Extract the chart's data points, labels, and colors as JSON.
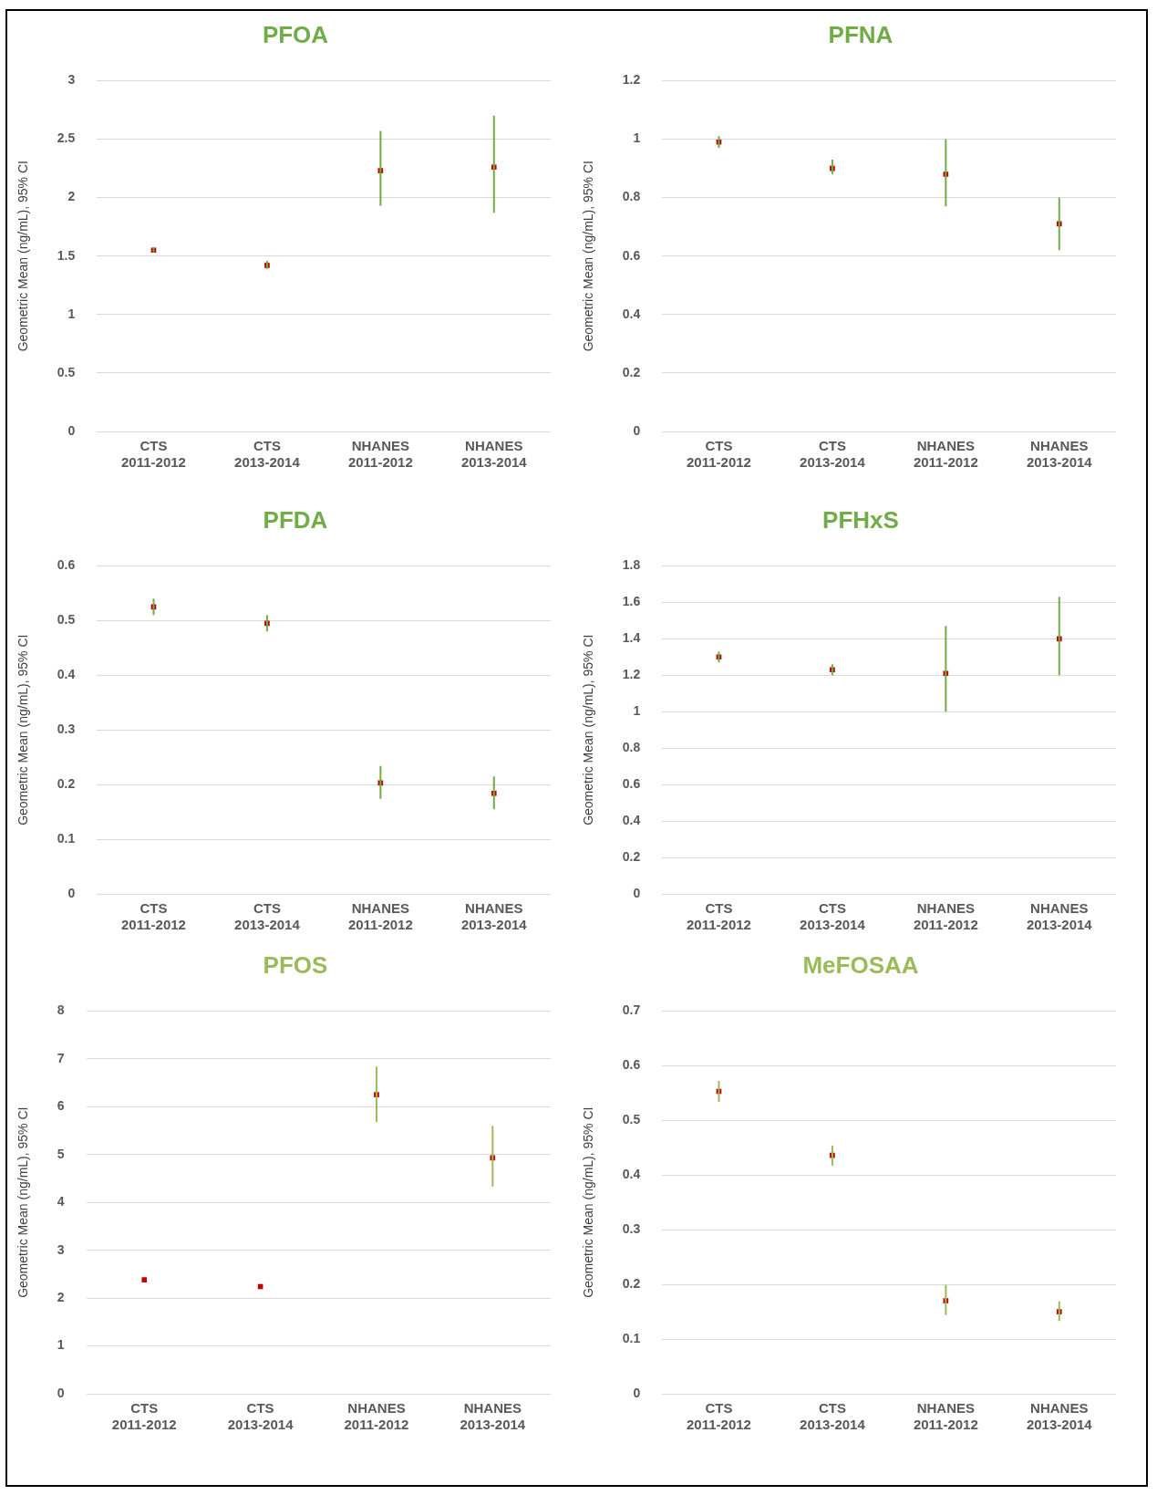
{
  "chart_data": [
    {
      "type": "scatter",
      "title": "PFOA",
      "ylabel": "Geometric Mean (ng/mL), 95% CI",
      "categories": [
        "CTS 2011-2012",
        "CTS 2013-2014",
        "NHANES 2011-2012",
        "NHANES 2013-2014"
      ],
      "series": [
        {
          "color": "#c00000",
          "values": [
            1.55,
            1.42,
            2.23,
            2.26
          ],
          "errors": [
            [
              1.53,
              1.57
            ],
            [
              1.39,
              1.46
            ],
            [
              1.93,
              2.57
            ],
            [
              1.87,
              2.7
            ]
          ]
        }
      ],
      "ylim": [
        0,
        3
      ],
      "yticks": [
        0,
        0.5,
        1,
        1.5,
        2,
        2.5,
        3
      ],
      "grid": "y",
      "legend": false,
      "marker": "square"
    },
    {
      "type": "scatter",
      "title": "PFNA",
      "ylabel": "Geometric Mean (ng/mL), 95% CI",
      "categories": [
        "CTS 2011-2012",
        "CTS 2013-2014",
        "NHANES 2011-2012",
        "NHANES 2013-2014"
      ],
      "series": [
        {
          "color": "#c00000",
          "values": [
            0.99,
            0.9,
            0.88,
            0.71
          ],
          "errors": [
            [
              0.97,
              1.01
            ],
            [
              0.88,
              0.93
            ],
            [
              0.77,
              1.0
            ],
            [
              0.62,
              0.8
            ]
          ]
        }
      ],
      "ylim": [
        0,
        1.2
      ],
      "yticks": [
        0,
        0.2,
        0.4,
        0.6,
        0.8,
        1,
        1.2
      ],
      "grid": "y",
      "legend": false,
      "marker": "square"
    },
    {
      "type": "scatter",
      "title": "PFDA",
      "ylabel": "Geometric Mean (ng/mL), 95% CI",
      "categories": [
        "CTS 2011-2012",
        "CTS 2013-2014",
        "NHANES 2011-2012",
        "NHANES 2013-2014"
      ],
      "series": [
        {
          "color": "#c00000",
          "values": [
            0.525,
            0.495,
            0.203,
            0.184
          ],
          "errors": [
            [
              0.51,
              0.54
            ],
            [
              0.48,
              0.51
            ],
            [
              0.174,
              0.234
            ],
            [
              0.155,
              0.215
            ]
          ]
        }
      ],
      "ylim": [
        0,
        0.6
      ],
      "yticks": [
        0,
        0.1,
        0.2,
        0.3,
        0.4,
        0.5,
        0.6
      ],
      "grid": "y",
      "legend": false,
      "marker": "square"
    },
    {
      "type": "scatter",
      "title": "PFHxS",
      "ylabel": "Geometric Mean (ng/mL), 95% CI",
      "categories": [
        "CTS 2011-2012",
        "CTS 2013-2014",
        "NHANES 2011-2012",
        "NHANES 2013-2014"
      ],
      "series": [
        {
          "color": "#c00000",
          "values": [
            1.3,
            1.23,
            1.21,
            1.4
          ],
          "errors": [
            [
              1.27,
              1.33
            ],
            [
              1.2,
              1.26
            ],
            [
              1.0,
              1.47
            ],
            [
              1.2,
              1.63
            ]
          ]
        }
      ],
      "ylim": [
        0,
        1.8
      ],
      "yticks": [
        0,
        0.2,
        0.4,
        0.6,
        0.8,
        1,
        1.2,
        1.4,
        1.6,
        1.8
      ],
      "grid": "y",
      "legend": false,
      "marker": "square"
    },
    {
      "type": "scatter",
      "title": "PFOS",
      "ylabel": "Geometric Mean (ng/mL), 95% CI",
      "categories": [
        "CTS 2011-2012",
        "CTS 2013-2014",
        "NHANES 2011-2012",
        "NHANES 2013-2014"
      ],
      "series": [
        {
          "color": "#c00000",
          "values": [
            2.38,
            2.24,
            6.25,
            4.93
          ],
          "errors": [
            null,
            null,
            [
              5.68,
              6.84
            ],
            [
              4.33,
              5.6
            ]
          ]
        }
      ],
      "ylim": [
        0,
        8
      ],
      "yticks": [
        0,
        1,
        2,
        3,
        4,
        5,
        6,
        7,
        8
      ],
      "grid": "y",
      "legend": false,
      "marker": "square"
    },
    {
      "type": "scatter",
      "title": "MeFOSAA",
      "ylabel": "Geometric Mean (ng/mL), 95% CI",
      "categories": [
        "CTS 2011-2012",
        "CTS 2013-2014",
        "NHANES 2011-2012",
        "NHANES 2013-2014"
      ],
      "series": [
        {
          "color": "#c00000",
          "values": [
            0.553,
            0.436,
            0.17,
            0.15
          ],
          "errors": [
            [
              0.534,
              0.572
            ],
            [
              0.417,
              0.454
            ],
            [
              0.144,
              0.199
            ],
            [
              0.133,
              0.169
            ]
          ]
        }
      ],
      "ylim": [
        0,
        0.7
      ],
      "yticks": [
        0,
        0.1,
        0.2,
        0.3,
        0.4,
        0.5,
        0.6,
        0.7
      ],
      "grid": "y",
      "legend": false,
      "marker": "square"
    }
  ]
}
